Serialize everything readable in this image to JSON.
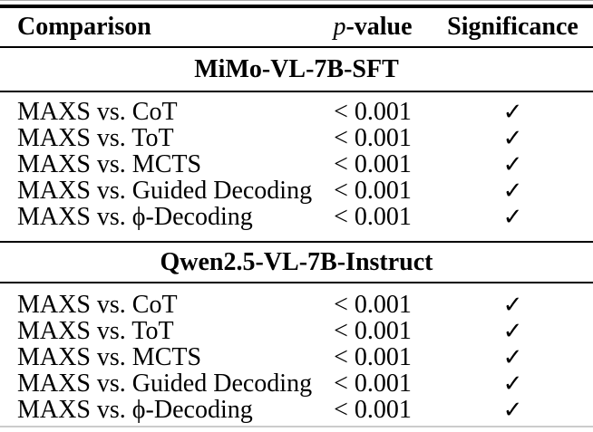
{
  "table": {
    "header": {
      "comparison": "Comparison",
      "p_value": {
        "italic": "p",
        "rest": "-value"
      },
      "significance": "Significance"
    },
    "sections": [
      {
        "title": "MiMo-VL-7B-SFT",
        "rows": [
          {
            "comparison": "MAXS vs. CoT",
            "p_value": "< 0.001",
            "significance": "✓"
          },
          {
            "comparison": "MAXS vs. ToT",
            "p_value": "< 0.001",
            "significance": "✓"
          },
          {
            "comparison": "MAXS vs. MCTS",
            "p_value": "< 0.001",
            "significance": "✓"
          },
          {
            "comparison": "MAXS vs. Guided Decoding",
            "p_value": "< 0.001",
            "significance": "✓"
          },
          {
            "comparison": "MAXS vs. ϕ-Decoding",
            "p_value": "< 0.001",
            "significance": "✓"
          }
        ]
      },
      {
        "title": "Qwen2.5-VL-7B-Instruct",
        "rows": [
          {
            "comparison": "MAXS vs. CoT",
            "p_value": "< 0.001",
            "significance": "✓"
          },
          {
            "comparison": "MAXS vs. ToT",
            "p_value": "< 0.001",
            "significance": "✓"
          },
          {
            "comparison": "MAXS vs. MCTS",
            "p_value": "< 0.001",
            "significance": "✓"
          },
          {
            "comparison": "MAXS vs. Guided Decoding",
            "p_value": "< 0.001",
            "significance": "✓"
          },
          {
            "comparison": "MAXS vs. ϕ-Decoding",
            "p_value": "< 0.001",
            "significance": "✓"
          }
        ]
      }
    ]
  }
}
